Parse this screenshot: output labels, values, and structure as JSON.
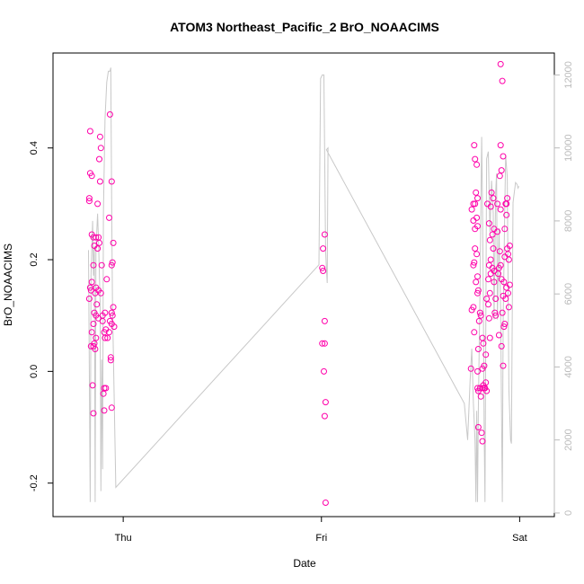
{
  "chart_data": {
    "type": "scatter",
    "title": "ATOM3 Northeast_Pacific_2 BrO_NOAACIMS",
    "xlabel": "Date",
    "ylabel": "BrO_NOAACIMS",
    "grid": false,
    "x_axis": {
      "type": "time",
      "range_hours": [
        -8.5,
        52.2
      ],
      "ticks": [
        {
          "label": "Thu",
          "hours": 0
        },
        {
          "label": "Fri",
          "hours": 24
        },
        {
          "label": "Sat",
          "hours": 48
        }
      ]
    },
    "y_axis": {
      "range": [
        -0.26,
        0.57
      ],
      "ticks": [
        {
          "label": "-0.2",
          "value": -0.2
        },
        {
          "label": "0.0",
          "value": 0.0
        },
        {
          "label": "0.2",
          "value": 0.2
        },
        {
          "label": "0.4",
          "value": 0.4
        }
      ]
    },
    "y2_axis": {
      "label": "",
      "color": "#bbbbbb",
      "range": [
        -100,
        12600
      ],
      "ticks": [
        {
          "label": "0",
          "value": 0
        },
        {
          "label": "2000",
          "value": 2000
        },
        {
          "label": "4000",
          "value": 4000
        },
        {
          "label": "6000",
          "value": 6000
        },
        {
          "label": "8000",
          "value": 8000
        },
        {
          "label": "10000",
          "value": 10000
        },
        {
          "label": "12000",
          "value": 12000
        }
      ]
    },
    "series": [
      {
        "kind": "points",
        "color": "#ff00aa",
        "points": [
          [
            -4.0,
            0.43
          ],
          [
            -4.0,
            0.355
          ],
          [
            -3.8,
            0.35
          ],
          [
            -4.1,
            0.31
          ],
          [
            -4.1,
            0.305
          ],
          [
            -3.8,
            0.245
          ],
          [
            -3.6,
            0.24
          ],
          [
            -3.3,
            0.24
          ],
          [
            -3.0,
            0.24
          ],
          [
            -2.9,
            0.23
          ],
          [
            -3.5,
            0.225
          ],
          [
            -3.1,
            0.22
          ],
          [
            -3.6,
            0.19
          ],
          [
            -3.8,
            0.16
          ],
          [
            -4.0,
            0.15
          ],
          [
            -3.9,
            0.145
          ],
          [
            -3.4,
            0.14
          ],
          [
            -3.3,
            0.15
          ],
          [
            -3.0,
            0.145
          ],
          [
            -4.1,
            0.13
          ],
          [
            -3.2,
            0.12
          ],
          [
            -3.5,
            0.105
          ],
          [
            -3.3,
            0.1
          ],
          [
            -3.0,
            0.095
          ],
          [
            -3.6,
            0.085
          ],
          [
            -3.8,
            0.07
          ],
          [
            -3.3,
            0.06
          ],
          [
            -3.5,
            0.05
          ],
          [
            -3.6,
            0.045
          ],
          [
            -3.4,
            0.04
          ],
          [
            -3.9,
            0.045
          ],
          [
            -3.7,
            -0.025
          ],
          [
            -3.6,
            -0.075
          ],
          [
            -3.1,
            0.3
          ],
          [
            -2.9,
            0.38
          ],
          [
            -2.8,
            0.42
          ],
          [
            -2.7,
            0.4
          ],
          [
            -2.8,
            0.34
          ],
          [
            -2.6,
            0.19
          ],
          [
            -2.7,
            0.14
          ],
          [
            -2.5,
            0.1
          ],
          [
            -2.5,
            0.09
          ],
          [
            -2.2,
            0.105
          ],
          [
            -2.3,
            0.07
          ],
          [
            -2.1,
            0.075
          ],
          [
            -2.2,
            0.06
          ],
          [
            -2.3,
            -0.03
          ],
          [
            -2.1,
            -0.03
          ],
          [
            -2.4,
            -0.04
          ],
          [
            -2.3,
            -0.07
          ],
          [
            -1.6,
            0.46
          ],
          [
            -1.4,
            0.34
          ],
          [
            -1.7,
            0.275
          ],
          [
            -1.2,
            0.23
          ],
          [
            -1.3,
            0.195
          ],
          [
            -1.4,
            0.19
          ],
          [
            -2.0,
            0.165
          ],
          [
            -1.2,
            0.115
          ],
          [
            -1.4,
            0.105
          ],
          [
            -1.6,
            0.09
          ],
          [
            -1.3,
            0.1
          ],
          [
            -1.1,
            0.08
          ],
          [
            -1.4,
            0.085
          ],
          [
            -1.7,
            0.07
          ],
          [
            -1.9,
            0.06
          ],
          [
            -1.5,
            0.025
          ],
          [
            -1.5,
            0.02
          ],
          [
            -1.4,
            -0.065
          ],
          [
            24.4,
            0.245
          ],
          [
            24.2,
            0.22
          ],
          [
            24.1,
            0.185
          ],
          [
            24.2,
            0.18
          ],
          [
            24.4,
            0.09
          ],
          [
            24.1,
            0.05
          ],
          [
            24.4,
            0.05
          ],
          [
            24.3,
            0.0
          ],
          [
            24.5,
            -0.055
          ],
          [
            24.4,
            -0.08
          ],
          [
            24.5,
            -0.235
          ],
          [
            42.2,
            0.29
          ],
          [
            42.5,
            0.405
          ],
          [
            42.6,
            0.38
          ],
          [
            42.8,
            0.37
          ],
          [
            42.7,
            0.32
          ],
          [
            42.9,
            0.31
          ],
          [
            42.4,
            0.3
          ],
          [
            42.6,
            0.3
          ],
          [
            42.8,
            0.275
          ],
          [
            42.9,
            0.26
          ],
          [
            42.4,
            0.27
          ],
          [
            42.6,
            0.255
          ],
          [
            42.6,
            0.22
          ],
          [
            42.8,
            0.21
          ],
          [
            42.5,
            0.195
          ],
          [
            42.4,
            0.19
          ],
          [
            42.9,
            0.17
          ],
          [
            43.0,
            0.145
          ],
          [
            42.9,
            0.14
          ],
          [
            42.7,
            0.16
          ],
          [
            42.4,
            0.115
          ],
          [
            42.2,
            0.11
          ],
          [
            43.1,
            0.09
          ],
          [
            43.2,
            0.105
          ],
          [
            43.3,
            0.1
          ],
          [
            42.5,
            0.07
          ],
          [
            43.0,
            0.04
          ],
          [
            42.9,
            0.0
          ],
          [
            42.1,
            0.005
          ],
          [
            42.9,
            -0.03
          ],
          [
            43.0,
            -0.035
          ],
          [
            43.2,
            -0.03
          ],
          [
            43.5,
            -0.03
          ],
          [
            43.3,
            -0.045
          ],
          [
            43.0,
            -0.1
          ],
          [
            43.4,
            -0.11
          ],
          [
            43.5,
            -0.125
          ],
          [
            43.5,
            0.06
          ],
          [
            43.6,
            0.05
          ],
          [
            43.7,
            0.01
          ],
          [
            43.9,
            -0.02
          ],
          [
            43.8,
            -0.03
          ],
          [
            43.6,
            -0.025
          ],
          [
            43.7,
            -0.03
          ],
          [
            43.9,
            0.03
          ],
          [
            43.5,
            0.005
          ],
          [
            44.0,
            -0.035
          ],
          [
            44.4,
            0.06
          ],
          [
            44.2,
            0.12
          ],
          [
            44.3,
            0.095
          ],
          [
            44.0,
            0.13
          ],
          [
            44.4,
            0.14
          ],
          [
            44.2,
            0.165
          ],
          [
            44.5,
            0.175
          ],
          [
            44.7,
            0.185
          ],
          [
            44.3,
            0.19
          ],
          [
            44.5,
            0.2
          ],
          [
            44.9,
            0.18
          ],
          [
            44.9,
            0.16
          ],
          [
            45.1,
            0.13
          ],
          [
            45.0,
            0.105
          ],
          [
            45.1,
            0.1
          ],
          [
            44.8,
            0.22
          ],
          [
            44.7,
            0.245
          ],
          [
            44.3,
            0.265
          ],
          [
            44.9,
            0.255
          ],
          [
            44.1,
            0.3
          ],
          [
            44.5,
            0.295
          ],
          [
            44.6,
            0.32
          ],
          [
            44.8,
            0.31
          ],
          [
            44.4,
            0.235
          ],
          [
            45.3,
            0.25
          ],
          [
            45.7,
            0.29
          ],
          [
            45.3,
            0.3
          ],
          [
            45.6,
            0.35
          ],
          [
            45.8,
            0.36
          ],
          [
            46.0,
            0.385
          ],
          [
            45.7,
            0.405
          ],
          [
            46.3,
            0.3
          ],
          [
            46.5,
            0.31
          ],
          [
            46.4,
            0.28
          ],
          [
            46.2,
            0.255
          ],
          [
            46.5,
            0.22
          ],
          [
            46.8,
            0.225
          ],
          [
            46.6,
            0.21
          ],
          [
            46.2,
            0.205
          ],
          [
            46.7,
            0.2
          ],
          [
            45.6,
            0.215
          ],
          [
            45.7,
            0.19
          ],
          [
            45.5,
            0.185
          ],
          [
            45.8,
            0.165
          ],
          [
            45.4,
            0.175
          ],
          [
            46.1,
            0.16
          ],
          [
            46.4,
            0.15
          ],
          [
            46.8,
            0.155
          ],
          [
            46.6,
            0.14
          ],
          [
            46.0,
            0.135
          ],
          [
            46.3,
            0.13
          ],
          [
            46.7,
            0.115
          ],
          [
            45.9,
            0.105
          ],
          [
            46.1,
            0.08
          ],
          [
            45.5,
            0.065
          ],
          [
            46.2,
            0.085
          ],
          [
            45.8,
            0.045
          ],
          [
            46.0,
            0.01
          ],
          [
            45.7,
            0.55
          ],
          [
            45.9,
            0.52
          ],
          [
            46.4,
            0.3
          ]
        ]
      },
      {
        "kind": "line",
        "axis": "y2",
        "color": "#c8c8c8",
        "points": [
          [
            -4.2,
            7200
          ],
          [
            -4.0,
            300
          ],
          [
            -3.9,
            6500
          ],
          [
            -3.7,
            8000
          ],
          [
            -3.6,
            6500
          ],
          [
            -3.5,
            7300
          ],
          [
            -3.4,
            300
          ],
          [
            -3.3,
            7200
          ],
          [
            -3.1,
            8200
          ],
          [
            -3.0,
            7500
          ],
          [
            -2.8,
            5800
          ],
          [
            -2.7,
            600
          ],
          [
            -2.6,
            4200
          ],
          [
            -2.5,
            1200
          ],
          [
            -2.4,
            8200
          ],
          [
            -2.2,
            10800
          ],
          [
            -2.0,
            11800
          ],
          [
            -1.8,
            12100
          ],
          [
            -1.6,
            12100
          ],
          [
            -1.5,
            12200
          ],
          [
            -1.4,
            8400
          ],
          [
            -1.3,
            5700
          ],
          [
            -0.9,
            700
          ],
          [
            23.7,
            6800
          ],
          [
            23.9,
            11900
          ],
          [
            24.1,
            12000
          ],
          [
            24.3,
            12000
          ],
          [
            24.5,
            7200
          ],
          [
            24.6,
            6700
          ],
          [
            24.7,
            6300
          ],
          [
            24.8,
            10000
          ],
          [
            24.6,
            9950
          ],
          [
            41.3,
            3000
          ],
          [
            41.7,
            2000
          ],
          [
            42.0,
            3600
          ],
          [
            42.2,
            4500
          ],
          [
            42.4,
            3000
          ],
          [
            42.6,
            2000
          ],
          [
            42.7,
            300
          ],
          [
            42.8,
            2800
          ],
          [
            42.9,
            300
          ],
          [
            43.0,
            2800
          ],
          [
            43.2,
            6200
          ],
          [
            43.4,
            10300
          ],
          [
            43.5,
            8500
          ],
          [
            43.6,
            6000
          ],
          [
            43.7,
            2200
          ],
          [
            43.8,
            300
          ],
          [
            44.0,
            9700
          ],
          [
            44.2,
            9900
          ],
          [
            44.4,
            7700
          ],
          [
            44.6,
            9100
          ],
          [
            44.8,
            8200
          ],
          [
            44.9,
            5300
          ],
          [
            45.1,
            8800
          ],
          [
            45.2,
            9300
          ],
          [
            45.3,
            5300
          ],
          [
            45.5,
            7800
          ],
          [
            45.7,
            5600
          ],
          [
            45.9,
            300
          ],
          [
            46.0,
            5200
          ],
          [
            46.2,
            8300
          ],
          [
            46.3,
            9800
          ],
          [
            46.5,
            9200
          ],
          [
            46.7,
            3400
          ],
          [
            46.9,
            2000
          ],
          [
            47.0,
            1900
          ],
          [
            47.2,
            8500
          ],
          [
            47.5,
            9050
          ],
          [
            47.7,
            9000
          ],
          [
            47.8,
            8900
          ],
          [
            47.9,
            8950
          ]
        ]
      }
    ]
  }
}
